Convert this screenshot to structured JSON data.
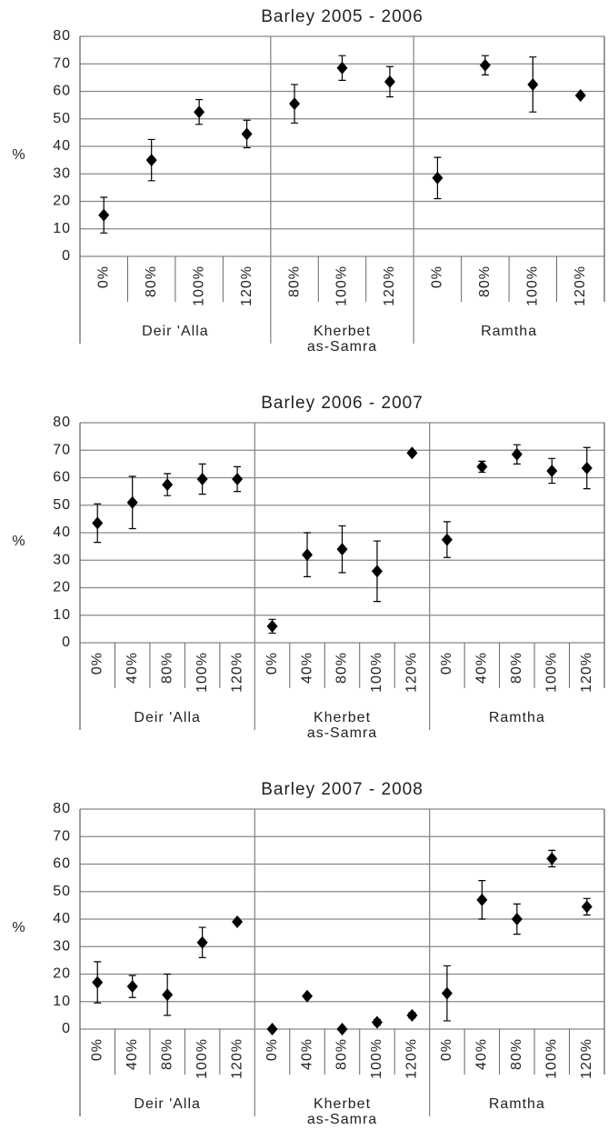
{
  "chart_data": [
    {
      "type": "errorbar",
      "title": "Barley 2005 - 2006",
      "ylabel": "%",
      "ylim": [
        0,
        80
      ],
      "yticks": [
        0,
        10,
        20,
        30,
        40,
        50,
        60,
        70,
        80
      ],
      "grid": true,
      "color": "#000000",
      "groups": [
        {
          "name": [
            "Deir 'Alla"
          ],
          "categories": [
            "0%",
            "80%",
            "100%",
            "120%"
          ],
          "values": [
            15,
            35,
            52.5,
            44.5
          ],
          "errors": [
            6.5,
            7.5,
            4.5,
            5
          ]
        },
        {
          "name": [
            "Kherbet",
            "as-Samra"
          ],
          "categories": [
            "80%",
            "100%",
            "120%"
          ],
          "values": [
            55.5,
            68.5,
            63.5
          ],
          "errors": [
            7,
            4.5,
            5.5
          ]
        },
        {
          "name": [
            "Ramtha"
          ],
          "categories": [
            "0%",
            "80%",
            "100%",
            "120%"
          ],
          "values": [
            28.5,
            69.5,
            62.5,
            58.5
          ],
          "errors": [
            7.5,
            3.5,
            10,
            0.5
          ]
        }
      ]
    },
    {
      "type": "errorbar",
      "title": "Barley 2006 - 2007",
      "ylabel": "%",
      "ylim": [
        0,
        80
      ],
      "yticks": [
        0,
        10,
        20,
        30,
        40,
        50,
        60,
        70,
        80
      ],
      "grid": true,
      "color": "#000000",
      "groups": [
        {
          "name": [
            "Deir 'Alla"
          ],
          "categories": [
            "0%",
            "40%",
            "80%",
            "100%",
            "120%"
          ],
          "values": [
            43.5,
            51,
            57.5,
            59.5,
            59.5
          ],
          "errors": [
            7,
            9.5,
            4,
            5.5,
            4.5
          ]
        },
        {
          "name": [
            "Kherbet",
            "as-Samra"
          ],
          "categories": [
            "0%",
            "40%",
            "80%",
            "100%",
            "120%"
          ],
          "values": [
            6,
            32,
            34,
            26,
            69
          ],
          "errors": [
            2.5,
            8,
            8.5,
            11,
            0.5
          ]
        },
        {
          "name": [
            "Ramtha"
          ],
          "categories": [
            "0%",
            "40%",
            "80%",
            "100%",
            "120%"
          ],
          "values": [
            37.5,
            64,
            68.5,
            62.5,
            63.5
          ],
          "errors": [
            6.5,
            2,
            3.5,
            4.5,
            7.5
          ]
        }
      ]
    },
    {
      "type": "errorbar",
      "title": "Barley 2007 - 2008",
      "ylabel": "%",
      "ylim": [
        0,
        80
      ],
      "yticks": [
        0,
        10,
        20,
        30,
        40,
        50,
        60,
        70,
        80
      ],
      "grid": true,
      "color": "#000000",
      "groups": [
        {
          "name": [
            "Deir 'Alla"
          ],
          "categories": [
            "0%",
            "40%",
            "80%",
            "100%",
            "120%"
          ],
          "values": [
            17,
            15.5,
            12.5,
            31.5,
            39
          ],
          "errors": [
            7.5,
            4,
            7.5,
            5.5,
            0.5
          ]
        },
        {
          "name": [
            "Kherbet",
            "as-Samra"
          ],
          "categories": [
            "0%",
            "40%",
            "80%",
            "100%",
            "120%"
          ],
          "values": [
            0,
            12,
            0,
            2.5,
            5
          ],
          "errors": [
            null,
            null,
            null,
            1,
            1
          ]
        },
        {
          "name": [
            "Ramtha"
          ],
          "categories": [
            "0%",
            "40%",
            "80%",
            "100%",
            "120%"
          ],
          "values": [
            13,
            47,
            40,
            62,
            44.5
          ],
          "errors": [
            10,
            7,
            5.5,
            3,
            3
          ]
        }
      ]
    }
  ]
}
